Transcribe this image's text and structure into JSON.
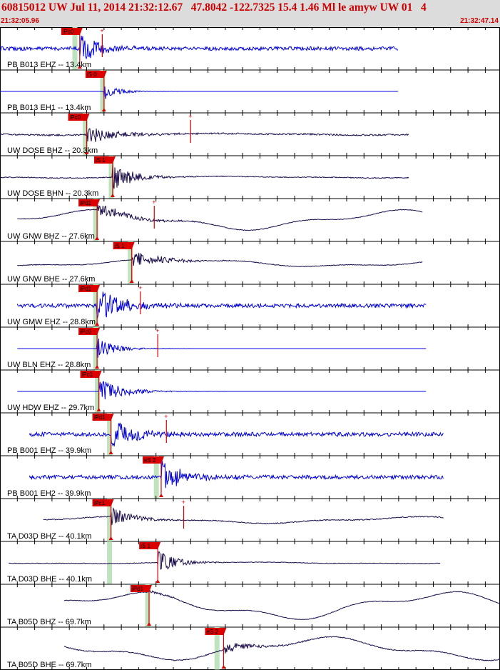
{
  "header": {
    "title": "60815012 UW Jul 11, 2014 21:32:12.67   47.8042 -122.7325 15.4 1.46 Ml le amyw UW 01   4",
    "start_time": "21:32:05.96",
    "end_time": "21:32:47.14"
  },
  "colors": {
    "header_bg": "#dcdcdc",
    "header_text": "#cc0000",
    "blue_trace": "#0000dd",
    "dark_trace": "#1a0a4a",
    "pick": "#dd0000",
    "highlight": "#bfe3bf"
  },
  "channels": [
    {
      "label": "PB B013 EHZ -- 13.4km",
      "color": "blue",
      "pick": "iPc0",
      "pick_t": 4.6,
      "band": 4.3,
      "start_t": 0.0,
      "end_t": 23.0,
      "amp": 0.12,
      "signal": 0.9,
      "decay": 7,
      "freq": 0.9,
      "long": 0,
      "extra": {
        "t": 5.9,
        "label": "+"
      }
    },
    {
      "label": "PB B013 EH1 -- 13.4km",
      "color": "blue",
      "pick": "iS 0",
      "pick_t": 6.0,
      "band": 5.9,
      "start_t": 0.0,
      "end_t": 23.0,
      "amp": 0.0,
      "signal": 0.45,
      "decay": 5,
      "freq": 0.9,
      "long": 0
    },
    {
      "label": "UW DOSE BHZ -- 20.3km",
      "color": "dark",
      "pick": "iPc0",
      "pick_t": 5.0,
      "band": 4.9,
      "start_t": 0.0,
      "end_t": 23.6,
      "amp": 0.05,
      "signal": 0.55,
      "decay": 10,
      "freq": 0.8,
      "long": 0.05,
      "extra": {
        "t": 11.0,
        "label": "+"
      }
    },
    {
      "label": "UW DOSE BHN -- 20.3km",
      "color": "dark",
      "pick": "iS 1",
      "pick_t": 6.5,
      "band": 6.4,
      "start_t": 0.0,
      "end_t": 23.6,
      "amp": 0.03,
      "signal": 0.8,
      "decay": 7,
      "freq": 0.8,
      "long": 0.05
    },
    {
      "label": "UW GNW BHZ -- 27.6km",
      "color": "dark",
      "pick": "iPd1",
      "pick_t": 5.6,
      "band": 5.5,
      "start_t": 1.0,
      "end_t": 24.4,
      "amp": 0.02,
      "signal": 0.35,
      "decay": 12,
      "freq": 0.5,
      "long": 0.6,
      "extra": {
        "t": 8.9,
        "label": "+"
      }
    },
    {
      "label": "UW GNW BHE -- 27.6km",
      "color": "dark",
      "pick": "iS 1",
      "pick_t": 7.6,
      "band": 7.5,
      "start_t": 1.0,
      "end_t": 24.4,
      "amp": 0.02,
      "signal": 0.5,
      "decay": 10,
      "freq": 0.7,
      "long": 0.25
    },
    {
      "label": "UW GMW EHZ -- 28.8km",
      "color": "blue",
      "pick": "iPd1",
      "pick_t": 5.6,
      "band": 5.5,
      "start_t": 1.0,
      "end_t": 24.6,
      "amp": 0.12,
      "signal": 0.85,
      "decay": 10,
      "freq": 1.0,
      "long": 0,
      "extra": {
        "t": 8.1,
        "label": "+"
      }
    },
    {
      "label": "UW BLN EHZ -- 28.8km",
      "color": "blue",
      "pick": "iPc0",
      "pick_t": 5.6,
      "band": 5.5,
      "start_t": 1.0,
      "end_t": 24.6,
      "amp": 0.0,
      "signal": 0.6,
      "decay": 6,
      "freq": 0.9,
      "long": 0,
      "extra": {
        "t": 9.1,
        "label": "+"
      }
    },
    {
      "label": "UW HDW EHZ -- 29.7km",
      "color": "blue",
      "pick": "iPc1",
      "pick_t": 5.7,
      "band": 5.6,
      "start_t": 1.0,
      "end_t": 24.6,
      "amp": 0.0,
      "signal": 0.7,
      "decay": 8,
      "freq": 0.9,
      "long": 0
    },
    {
      "label": "PB B001 EHZ -- 39.9km",
      "color": "blue",
      "pick": "iPd1",
      "pick_t": 6.4,
      "band": 6.3,
      "start_t": 1.7,
      "end_t": 25.6,
      "amp": 0.13,
      "signal": 0.85,
      "decay": 8,
      "freq": 1.0,
      "long": 0,
      "extra": {
        "t": 9.6,
        "label": "+"
      }
    },
    {
      "label": "PB B001 EH2 -- 39.9km",
      "color": "blue",
      "pick": "eS 2",
      "pick_t": 9.3,
      "band": 9.0,
      "start_t": 1.7,
      "end_t": 25.6,
      "amp": 0.12,
      "signal": 0.85,
      "decay": 8,
      "freq": 1.0,
      "long": 0
    },
    {
      "label": "TA D03D BHZ -- 40.1km",
      "color": "dark",
      "pick": "iPc1",
      "pick_t": 6.4,
      "band": 6.3,
      "start_t": 2.5,
      "end_t": 25.6,
      "amp": 0.03,
      "signal": 0.5,
      "decay": 8,
      "freq": 0.8,
      "long": 0.2,
      "extra": {
        "t": 10.6,
        "label": "+"
      }
    },
    {
      "label": "TA D03D BHE -- 40.1km",
      "color": "dark",
      "pick": "iS 1",
      "pick_t": 9.1,
      "band": 6.3,
      "start_t": 0.5,
      "end_t": 25.4,
      "amp": 0.02,
      "signal": 0.7,
      "decay": 6,
      "freq": 0.9,
      "long": 0.05
    },
    {
      "label": "TA B05D BHZ -- 69.7km",
      "color": "dark",
      "pick": "iPd1",
      "pick_t": 8.6,
      "band": 8.5,
      "start_t": 3.7,
      "end_t": 28.9,
      "amp": 0.02,
      "signal": 0.1,
      "decay": 8,
      "freq": 0.6,
      "long": 0.85
    },
    {
      "label": "TA B05D BHE -- 69.7km",
      "color": "dark",
      "pick": "eS 2",
      "pick_t": 12.9,
      "band": 12.5,
      "start_t": 3.7,
      "end_t": 28.9,
      "amp": 0.03,
      "signal": 0.3,
      "decay": 10,
      "freq": 0.6,
      "long": 0.7
    }
  ]
}
